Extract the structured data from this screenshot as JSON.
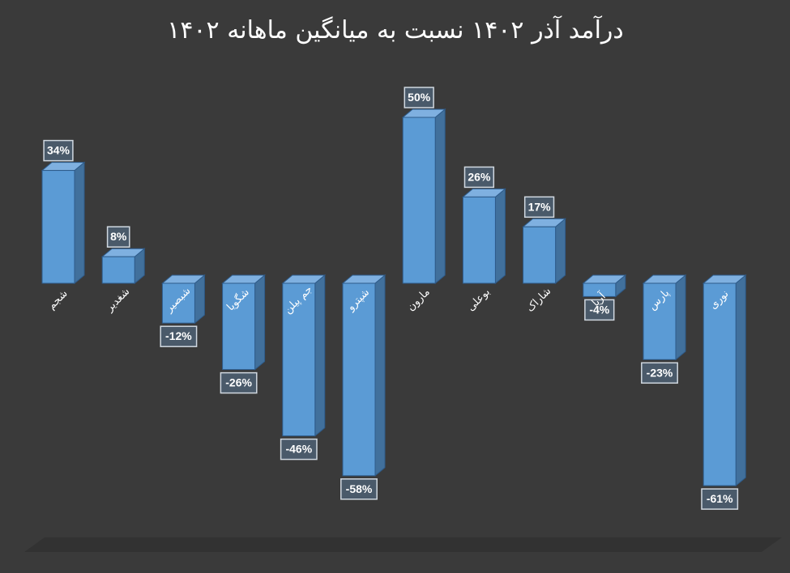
{
  "chart_data": {
    "type": "bar",
    "title": "درآمد آذر ۱۴۰۲ نسبت به میانگین ماهانه ۱۴۰۲",
    "categories": [
      "شجم",
      "شغدیر",
      "شبصیر",
      "شگویا",
      "جم پیلن",
      "شپترو",
      "مارون",
      "بوعلی",
      "شاراک",
      "آریا",
      "پارس",
      "نوری"
    ],
    "series": [
      {
        "values": [
          34,
          8,
          -12,
          -26,
          -46,
          -58,
          50,
          26,
          17,
          -4,
          -23,
          -61
        ]
      }
    ],
    "data_labels": [
      "34%",
      "8%",
      "-12%",
      "-26%",
      "-46%",
      "-58%",
      "50%",
      "26%",
      "17%",
      "-4%",
      "-23%",
      "-61%"
    ],
    "ylim": [
      -70,
      60
    ],
    "grid": false,
    "legend": "none",
    "style": "3d-column",
    "colors": {
      "background": "#3a3a3a",
      "bar_front": "#5b9bd5",
      "bar_side": "#41709c",
      "bar_top": "#7fb0e0",
      "bar_edge": "#2e5b8a",
      "label_box_fill": "#4a5a6a",
      "label_box_border": "#d0d8e0",
      "text": "#ffffff",
      "floor": "#323232"
    }
  }
}
